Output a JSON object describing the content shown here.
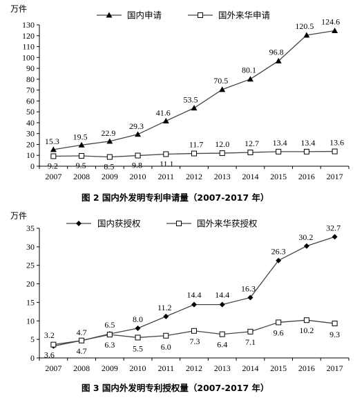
{
  "chart_data": [
    {
      "type": "line",
      "unit_label": "万件",
      "x": [
        "2007",
        "2008",
        "2009",
        "2010",
        "2011",
        "2012",
        "2013",
        "2014",
        "2015",
        "2016",
        "2017"
      ],
      "ylim": [
        0,
        130
      ],
      "yticks": [
        0,
        10,
        20,
        30,
        40,
        50,
        60,
        70,
        80,
        90,
        100,
        110,
        120,
        130
      ],
      "grid": false,
      "legend_position": "top",
      "series": [
        {
          "name": "国内申请",
          "marker": "triangle",
          "values": [
            15.3,
            19.5,
            22.9,
            29.3,
            41.6,
            53.5,
            70.5,
            80.1,
            96.8,
            120.5,
            124.6
          ],
          "labels": [
            "15.3",
            "19.5",
            "22.9",
            "29.3",
            "41.6",
            "53.5",
            "70.5",
            "80.1",
            "96.8",
            "120.5",
            "124.6"
          ]
        },
        {
          "name": "国外来华申请",
          "marker": "square-open",
          "values": [
            9.2,
            9.5,
            8.5,
            9.8,
            11.1,
            11.7,
            12.0,
            12.7,
            13.4,
            13.4,
            13.6
          ],
          "labels": [
            "9.2",
            "9.5",
            "8.5",
            "9.8",
            "11.1",
            "11.7",
            "12.0",
            "12.7",
            "13.4",
            "13.4",
            "13.6"
          ]
        }
      ],
      "caption": "图 2   国内外发明专利申请量（2007-2017 年）"
    },
    {
      "type": "line",
      "unit_label": "万件",
      "x": [
        "2007",
        "2008",
        "2009",
        "2010",
        "2011",
        "2012",
        "2013",
        "2014",
        "2015",
        "2016",
        "2017"
      ],
      "ylim": [
        0,
        35
      ],
      "yticks": [
        0,
        5,
        10,
        15,
        20,
        25,
        30,
        35
      ],
      "grid": false,
      "legend_position": "top",
      "series": [
        {
          "name": "国内获授权",
          "marker": "diamond",
          "values": [
            3.2,
            4.7,
            6.5,
            8.0,
            11.2,
            14.4,
            14.4,
            16.3,
            26.3,
            30.2,
            32.7
          ],
          "labels": [
            "3.2",
            "4.7",
            "6.5",
            "8.0",
            "11.2",
            "14.4",
            "14.4",
            "16.3",
            "26.3",
            "30.2",
            "32.7"
          ]
        },
        {
          "name": "国外来华获授权",
          "marker": "square-open",
          "values": [
            3.6,
            4.7,
            6.3,
            5.5,
            6.0,
            7.3,
            6.4,
            7.1,
            9.6,
            10.2,
            9.3
          ],
          "labels": [
            "3.6",
            "4.7",
            "6.3",
            "5.5",
            "6.0",
            "7.3",
            "6.4",
            "7.1",
            "9.6",
            "10.2",
            "9.3"
          ]
        }
      ],
      "caption": "图 3   国内外发明专利授权量（2007-2017 年）"
    }
  ]
}
